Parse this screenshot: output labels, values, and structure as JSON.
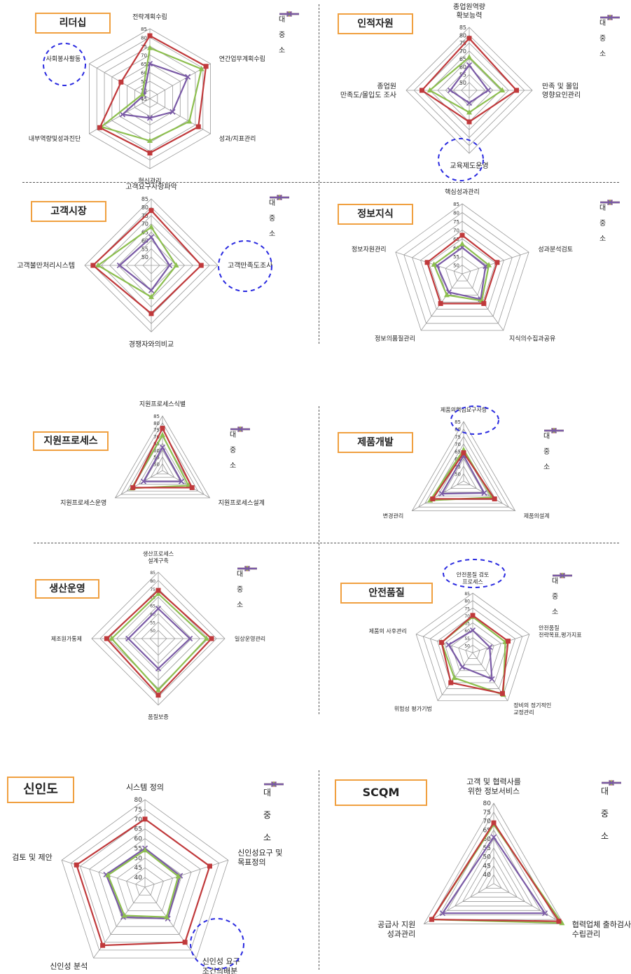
{
  "legend_labels": [
    "대",
    "중",
    "소"
  ],
  "colors": {
    "large": "#c0393b",
    "medium": "#8dbf4f",
    "small": "#7a5aa6",
    "highlight": "#2a2ae0",
    "title_border": "#f0a040"
  },
  "chart_data": [
    {
      "type": "radar",
      "title": "리더십",
      "categories": [
        "전략계획수립",
        "연간업무계획수립",
        "성과/지표관리",
        "혁신관리",
        "내부역량및성과진단",
        "사회봉사활동"
      ],
      "tick_labels": [
        "45",
        "50",
        "55",
        "60",
        "65",
        "70",
        "75",
        "80",
        "85"
      ],
      "range": [
        45,
        85
      ],
      "series": [
        {
          "name": "대",
          "values": [
            81,
            82,
            77,
            76,
            78,
            64
          ]
        },
        {
          "name": "중",
          "values": [
            74,
            79,
            71,
            69,
            77,
            50
          ]
        },
        {
          "name": "소",
          "values": [
            65,
            70,
            60,
            56,
            63,
            49
          ]
        }
      ],
      "highlight_index": 5
    },
    {
      "type": "radar",
      "title": "인적자원",
      "categories": [
        "종업원역량\n확보능력",
        "만족 및 몰입\n영향요인관리",
        "교육제도운영",
        "종업원\n만족도/몰입도 조사"
      ],
      "tick_labels": [
        "50",
        "55",
        "60",
        "65",
        "70",
        "75",
        "80",
        "85"
      ],
      "range": [
        45,
        85
      ],
      "series": [
        {
          "name": "대",
          "values": [
            78,
            75,
            65,
            75
          ]
        },
        {
          "name": "중",
          "values": [
            66,
            66,
            59,
            70
          ]
        },
        {
          "name": "소",
          "values": [
            61,
            57,
            53,
            57
          ]
        }
      ],
      "highlight_index": 2
    },
    {
      "type": "radar",
      "title": "고객시장",
      "categories": [
        "고객요구사항파악",
        "고객만족도조사",
        "경쟁자와의비교",
        "고객불만처리시스템"
      ],
      "tick_labels": [
        "50",
        "55",
        "60",
        "65",
        "70",
        "75",
        "80",
        "85"
      ],
      "range": [
        45,
        85
      ],
      "series": [
        {
          "name": "대",
          "values": [
            78,
            75,
            74,
            80
          ]
        },
        {
          "name": "중",
          "values": [
            68,
            60,
            64,
            77
          ]
        },
        {
          "name": "소",
          "values": [
            62,
            56,
            60,
            64
          ]
        }
      ],
      "highlight_index": 1
    },
    {
      "type": "radar",
      "title": "정보지식",
      "categories": [
        "핵심성과관리",
        "성과분석검토",
        "지식의수집과공유",
        "정보의품질관리",
        "정보자원관리"
      ],
      "tick_labels": [
        "50",
        "55",
        "60",
        "65",
        "70",
        "75",
        "80",
        "85"
      ],
      "range": [
        45,
        85
      ],
      "series": [
        {
          "name": "대",
          "values": [
            67,
            66,
            66,
            66,
            66
          ]
        },
        {
          "name": "중",
          "values": [
            62,
            61,
            64,
            60,
            62
          ]
        },
        {
          "name": "소",
          "values": [
            60,
            59,
            63,
            58,
            60
          ]
        }
      ],
      "highlight_index": -1
    },
    {
      "type": "radar",
      "title": "지원프로세스",
      "categories": [
        "지원프로세스식별",
        "지원프로세스설계",
        "지원프로세스운영"
      ],
      "tick_labels": [
        "50",
        "55",
        "60",
        "65",
        "70",
        "75",
        "80",
        "85"
      ],
      "range": [
        45,
        85
      ],
      "series": [
        {
          "name": "대",
          "values": [
            76,
            70,
            70
          ]
        },
        {
          "name": "중",
          "values": [
            71,
            67,
            71
          ]
        },
        {
          "name": "소",
          "values": [
            62,
            61,
            61
          ]
        }
      ],
      "highlight_index": -1
    },
    {
      "type": "radar",
      "title": "제품개발",
      "categories": [
        "제품의핵심요구사항",
        "제품의설계",
        "변경관리"
      ],
      "tick_labels": [
        "50",
        "55",
        "60",
        "65",
        "70",
        "75",
        "80",
        "85"
      ],
      "range": [
        45,
        85
      ],
      "series": [
        {
          "name": "대",
          "values": [
            64,
            69,
            69
          ]
        },
        {
          "name": "중",
          "values": [
            66,
            67,
            71
          ]
        },
        {
          "name": "소",
          "values": [
            62,
            61,
            62
          ]
        }
      ],
      "highlight_index": 0
    },
    {
      "type": "radar",
      "title": "생산운영",
      "categories": [
        "생산프로세스\n설계구축",
        "일상운영관리",
        "품질보증",
        "제조원가통제"
      ],
      "tick_labels": [
        "50",
        "55",
        "60",
        "65",
        "70",
        "75",
        "80",
        "85"
      ],
      "range": [
        45,
        85
      ],
      "series": [
        {
          "name": "대",
          "values": [
            74,
            77,
            79,
            76
          ]
        },
        {
          "name": "중",
          "values": [
            72,
            74,
            76,
            73
          ]
        },
        {
          "name": "소",
          "values": [
            63,
            64,
            63,
            63
          ]
        }
      ],
      "highlight_index": -1
    },
    {
      "type": "radar",
      "title": "안전품질",
      "categories": [
        "안전품질 검토\n프로세스",
        "안전품질\n전략목표,평가지표",
        "장비의 정기적인\n교정관리",
        "위험성 평가기법",
        "제품의 사후관리"
      ],
      "tick_labels": [
        "50",
        "55",
        "60",
        "65",
        "70",
        "75",
        "80",
        "85"
      ],
      "range": [
        45,
        85
      ],
      "series": [
        {
          "name": "대",
          "values": [
            70,
            70,
            79,
            70,
            67
          ]
        },
        {
          "name": "중",
          "values": [
            69,
            68,
            80,
            66,
            67
          ]
        },
        {
          "name": "소",
          "values": [
            60,
            57,
            67,
            57,
            62
          ]
        }
      ],
      "highlight_index": 0
    },
    {
      "type": "radar",
      "title": "신인도",
      "categories": [
        "시스템 정의",
        "신인성요구 및\n목표정의",
        "신인성 요구\n조건의배분",
        "신인성 분석",
        "검토 및 제안"
      ],
      "tick_labels": [
        "40",
        "45",
        "50",
        "55",
        "60",
        "65",
        "70",
        "75",
        "80"
      ],
      "range": [
        35,
        80
      ],
      "series": [
        {
          "name": "대",
          "values": [
            70,
            70,
            70,
            72,
            72
          ]
        },
        {
          "name": "중",
          "values": [
            54,
            53,
            54,
            53,
            55
          ]
        },
        {
          "name": "소",
          "values": [
            55,
            54,
            55,
            54,
            56
          ]
        }
      ],
      "highlight_index": 2
    },
    {
      "type": "radar",
      "title": "SCQM",
      "categories": [
        "고객 및 협력사를\n위한 정보서비스",
        "협력업체 출하검사\n수립관리",
        "공급사 지원\n성과관리"
      ],
      "tick_labels": [
        "40",
        "45",
        "50",
        "55",
        "60",
        "65",
        "70",
        "75",
        "80"
      ],
      "range": [
        35,
        80
      ],
      "series": [
        {
          "name": "대",
          "values": [
            69,
            77,
            75
          ]
        },
        {
          "name": "중",
          "values": [
            68,
            79,
            75
          ]
        },
        {
          "name": "소",
          "values": [
            61,
            68,
            68
          ]
        }
      ],
      "highlight_index": -1
    }
  ]
}
